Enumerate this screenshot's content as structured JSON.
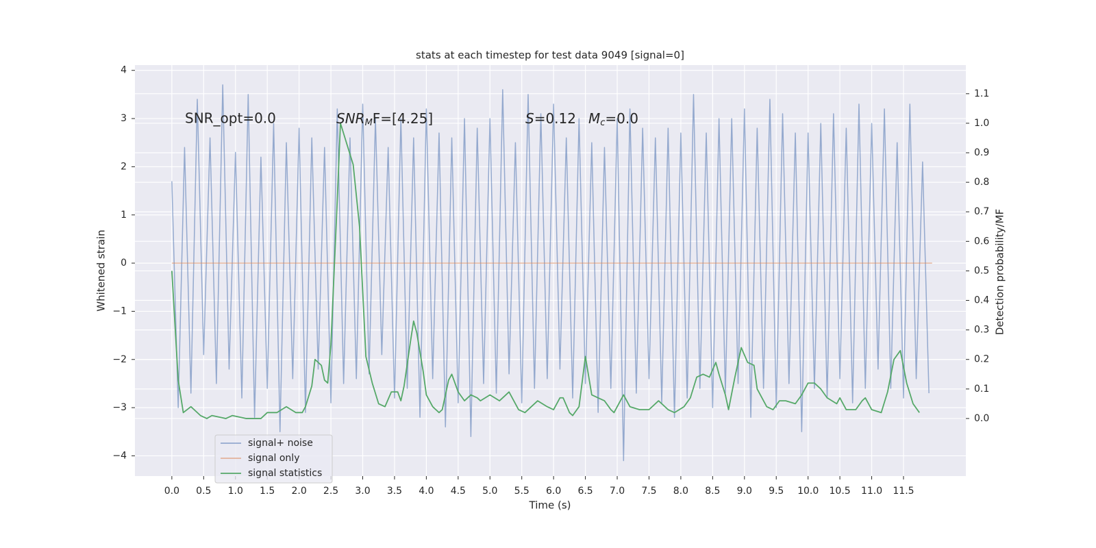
{
  "chart_data": {
    "type": "line",
    "title": "stats at each timestep for test data 9049 [signal=0]",
    "xlabel": "Time (s)",
    "ylabel": "Whitened strain",
    "y2label": "Detection probability/MF",
    "xlim": [
      -0.58,
      12.48
    ],
    "ylim": [
      -4.42,
      4.11
    ],
    "y2lim": [
      -0.195,
      1.197
    ],
    "xticks": [
      {
        "value": 0,
        "label": "0.0"
      },
      0.5,
      {
        "value": 1,
        "label": "1.0"
      },
      1.5,
      {
        "value": 2,
        "label": "2.0"
      },
      2.5,
      {
        "value": 3,
        "label": "3.0"
      },
      3.5,
      {
        "value": 4,
        "label": "4.0"
      },
      4.5,
      {
        "value": 5,
        "label": "5.0"
      },
      5.5,
      {
        "value": 6,
        "label": "6.0"
      },
      6.5,
      {
        "value": 7,
        "label": "7.0"
      },
      7.5,
      {
        "value": 8,
        "label": "8.0"
      },
      8.5,
      {
        "value": 9,
        "label": "9.0"
      },
      9.5,
      {
        "value": 10,
        "label": "10.0"
      },
      10.5,
      {
        "value": 11,
        "label": "11.0"
      },
      11.5
    ],
    "yticks": [
      {
        "value": -4,
        "label": "−4"
      },
      {
        "value": -3,
        "label": "−3"
      },
      {
        "value": -2,
        "label": "−2"
      },
      {
        "value": -1,
        "label": "−1"
      },
      0,
      1,
      2,
      3,
      4
    ],
    "y2ticks": [
      {
        "value": 0,
        "label": "0.0"
      },
      0.1,
      0.2,
      0.3,
      0.4,
      0.5,
      0.6,
      0.7,
      0.8,
      0.9,
      {
        "value": 1,
        "label": "1.0"
      },
      1.1
    ],
    "grid": true,
    "legend": "lower left",
    "annotations": [
      [
        "SNR_opt=0.0"
      ],
      [
        "SNR",
        "M",
        "F=[4.25]"
      ],
      [
        "S",
        "=0.12",
        "M",
        "c",
        "=0.0"
      ]
    ],
    "series": [
      {
        "name": "signal+ noise",
        "color": "#4c72b0",
        "x": [
          0,
          0.1,
          0.2,
          0.3,
          0.4,
          0.5,
          0.6,
          0.7,
          0.8,
          0.9,
          1,
          1.1,
          1.2,
          1.3,
          1.4,
          1.5,
          1.6,
          1.7,
          1.8,
          1.9,
          2,
          2.1,
          2.2,
          2.3,
          2.4,
          2.5,
          2.6,
          2.7,
          2.8,
          2.9,
          3,
          3.1,
          3.2,
          3.3,
          3.4,
          3.5,
          3.6,
          3.7,
          3.8,
          3.9,
          4,
          4.1,
          4.2,
          4.3,
          4.4,
          4.5,
          4.6,
          4.7,
          4.8,
          4.9,
          5,
          5.1,
          5.2,
          5.3,
          5.4,
          5.5,
          5.6,
          5.7,
          5.8,
          5.9,
          6,
          6.1,
          6.2,
          6.3,
          6.4,
          6.5,
          6.6,
          6.7,
          6.8,
          6.9,
          7,
          7.1,
          7.2,
          7.3,
          7.4,
          7.5,
          7.6,
          7.7,
          7.8,
          7.9,
          8,
          8.1,
          8.2,
          8.3,
          8.4,
          8.5,
          8.6,
          8.7,
          8.8,
          8.9,
          9,
          9.1,
          9.2,
          9.3,
          9.4,
          9.5,
          9.6,
          9.7,
          9.8,
          9.9,
          10,
          10.1,
          10.2,
          10.3,
          10.4,
          10.5,
          10.6,
          10.7,
          10.8,
          10.9,
          11,
          11.1,
          11.2,
          11.3,
          11.4,
          11.5,
          11.6,
          11.7,
          11.8,
          11.9
        ],
        "values": [
          1.7,
          -3.0,
          2.4,
          -2.7,
          3.4,
          -1.9,
          2.6,
          -2.5,
          3.7,
          -2.2,
          2.3,
          -2.8,
          3.5,
          -3.2,
          2.2,
          -2.6,
          2.9,
          -3.5,
          2.5,
          -2.4,
          2.8,
          -3.1,
          2.6,
          -2.2,
          2.4,
          -2.9,
          3.2,
          -2.5,
          2.6,
          -2.4,
          3.3,
          -2.3,
          3.0,
          -1.9,
          2.4,
          -2.8,
          3.0,
          -2.6,
          2.6,
          -3.2,
          3.2,
          -2.4,
          2.7,
          -3.4,
          2.6,
          -2.9,
          3.0,
          -3.6,
          2.8,
          -2.5,
          3.0,
          -2.7,
          3.6,
          -2.3,
          2.5,
          -2.9,
          3.5,
          -2.6,
          3.1,
          -2.4,
          3.3,
          -2.2,
          2.6,
          -2.8,
          3.0,
          -2.5,
          2.5,
          -3.1,
          2.4,
          -2.6,
          3.0,
          -4.1,
          3.2,
          -2.7,
          2.8,
          -2.4,
          2.6,
          -2.9,
          2.8,
          -3.2,
          2.7,
          -2.8,
          3.5,
          -2.6,
          2.7,
          -3.0,
          3.0,
          -2.7,
          3.0,
          -2.5,
          3.2,
          -3.2,
          2.8,
          -2.6,
          3.4,
          -3.0,
          3.1,
          -2.5,
          2.7,
          -3.5,
          2.7,
          -2.6,
          2.9,
          -2.8,
          3.1,
          -2.4,
          2.8,
          -2.9,
          3.3,
          -2.6,
          2.9,
          -2.2,
          3.2,
          -2.6,
          2.5,
          -2.8,
          3.3,
          -2.4,
          2.1,
          -2.7
        ]
      },
      {
        "name": "signal only",
        "color": "#dd8452",
        "x": [
          0,
          11.95
        ],
        "values": [
          0,
          0
        ]
      },
      {
        "name": "signal statistics",
        "color": "#55a868",
        "axis": "y2",
        "x": [
          0,
          0.1,
          0.18,
          0.3,
          0.45,
          0.55,
          0.63,
          0.85,
          0.95,
          1.17,
          1.4,
          1.5,
          1.65,
          1.8,
          1.95,
          2.05,
          2.1,
          2.2,
          2.25,
          2.35,
          2.4,
          2.45,
          2.5,
          2.6,
          2.65,
          2.75,
          2.85,
          2.95,
          3.05,
          3.15,
          3.25,
          3.35,
          3.45,
          3.55,
          3.6,
          3.65,
          3.75,
          3.8,
          3.85,
          3.95,
          4.0,
          4.1,
          4.2,
          4.25,
          4.35,
          4.4,
          4.5,
          4.6,
          4.7,
          4.8,
          4.85,
          5.0,
          5.15,
          5.3,
          5.45,
          5.55,
          5.65,
          5.75,
          5.9,
          6.0,
          6.1,
          6.15,
          6.25,
          6.3,
          6.4,
          6.5,
          6.6,
          6.7,
          6.8,
          6.9,
          6.95,
          7.05,
          7.1,
          7.2,
          7.35,
          7.5,
          7.65,
          7.8,
          7.9,
          8.05,
          8.15,
          8.25,
          8.35,
          8.45,
          8.55,
          8.6,
          8.7,
          8.75,
          8.85,
          8.95,
          9.05,
          9.15,
          9.2,
          9.35,
          9.45,
          9.55,
          9.65,
          9.8,
          9.9,
          10.0,
          10.1,
          10.2,
          10.3,
          10.45,
          10.5,
          10.6,
          10.75,
          10.85,
          10.9,
          11.0,
          11.15,
          11.25,
          11.35,
          11.45,
          11.55,
          11.65,
          11.75
        ],
        "values": [
          0.5,
          0.13,
          0.02,
          0.04,
          0.01,
          0.0,
          0.01,
          0.0,
          0.01,
          0.0,
          0.0,
          0.02,
          0.02,
          0.04,
          0.02,
          0.02,
          0.04,
          0.11,
          0.2,
          0.18,
          0.13,
          0.12,
          0.25,
          0.74,
          1.0,
          0.93,
          0.86,
          0.65,
          0.21,
          0.12,
          0.05,
          0.04,
          0.09,
          0.09,
          0.06,
          0.11,
          0.26,
          0.33,
          0.29,
          0.16,
          0.08,
          0.04,
          0.02,
          0.03,
          0.13,
          0.15,
          0.09,
          0.06,
          0.08,
          0.07,
          0.06,
          0.08,
          0.06,
          0.09,
          0.03,
          0.02,
          0.04,
          0.06,
          0.04,
          0.03,
          0.07,
          0.07,
          0.02,
          0.01,
          0.04,
          0.21,
          0.08,
          0.07,
          0.06,
          0.03,
          0.02,
          0.06,
          0.08,
          0.04,
          0.03,
          0.03,
          0.06,
          0.03,
          0.02,
          0.04,
          0.07,
          0.14,
          0.15,
          0.14,
          0.19,
          0.15,
          0.08,
          0.03,
          0.14,
          0.24,
          0.19,
          0.18,
          0.1,
          0.04,
          0.03,
          0.06,
          0.06,
          0.05,
          0.08,
          0.12,
          0.12,
          0.1,
          0.07,
          0.05,
          0.07,
          0.03,
          0.03,
          0.06,
          0.07,
          0.03,
          0.02,
          0.09,
          0.2,
          0.23,
          0.12,
          0.05,
          0.02
        ]
      }
    ]
  }
}
